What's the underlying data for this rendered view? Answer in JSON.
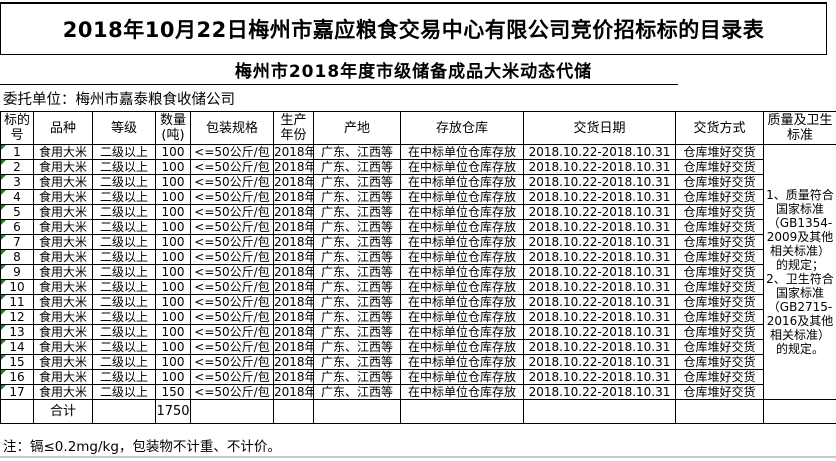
{
  "title": "2018年10月22日梅州市嘉应粮食交易中心有限公司竞价招标标的目录表",
  "subtitle": "梅州市2018年度市级储备成品大米动态代储",
  "client_line": "委托单位：梅州市嘉泰粮食收储公司",
  "note": "注：镉≤0.2mg/kg，包装物不计重、不计价。",
  "colors": {
    "corner_marker_green": "#1e7e1e",
    "bottom_edge_gray": "#c9c9c9"
  },
  "table": {
    "headers": [
      "标的\n号",
      "品种",
      "等级",
      "数量\n(吨)",
      "包装规格",
      "生产\n年份",
      "产地",
      "存放仓库",
      "交货日期",
      "交货方式",
      "质量及卫生\n标准"
    ],
    "quality_standard": [
      "1、质量符合国家标准（GB1354-2009及其他相关标准）的规定；",
      "2、卫生符合国家标准（GB2715-2016及其他相关标准）的规定。"
    ],
    "total": {
      "label": "合计",
      "quantity": "1750"
    },
    "rows": [
      {
        "no": "1",
        "variety": "食用大米",
        "grade": "二级以上",
        "qty": "100",
        "pack": "<=50公斤/包",
        "year": "2018年",
        "origin": "广东、江西等",
        "warehouse": "在中标单位仓库存放",
        "dates": "2018.10.22-2018.10.31",
        "delivery": "仓库堆好交货"
      },
      {
        "no": "2",
        "variety": "食用大米",
        "grade": "二级以上",
        "qty": "100",
        "pack": "<=50公斤/包",
        "year": "2018年",
        "origin": "广东、江西等",
        "warehouse": "在中标单位仓库存放",
        "dates": "2018.10.22-2018.10.31",
        "delivery": "仓库堆好交货"
      },
      {
        "no": "3",
        "variety": "食用大米",
        "grade": "二级以上",
        "qty": "100",
        "pack": "<=50公斤/包",
        "year": "2018年",
        "origin": "广东、江西等",
        "warehouse": "在中标单位仓库存放",
        "dates": "2018.10.22-2018.10.31",
        "delivery": "仓库堆好交货"
      },
      {
        "no": "4",
        "variety": "食用大米",
        "grade": "二级以上",
        "qty": "100",
        "pack": "<=50公斤/包",
        "year": "2018年",
        "origin": "广东、江西等",
        "warehouse": "在中标单位仓库存放",
        "dates": "2018.10.22-2018.10.31",
        "delivery": "仓库堆好交货"
      },
      {
        "no": "5",
        "variety": "食用大米",
        "grade": "二级以上",
        "qty": "100",
        "pack": "<=50公斤/包",
        "year": "2018年",
        "origin": "广东、江西等",
        "warehouse": "在中标单位仓库存放",
        "dates": "2018.10.22-2018.10.31",
        "delivery": "仓库堆好交货"
      },
      {
        "no": "6",
        "variety": "食用大米",
        "grade": "二级以上",
        "qty": "100",
        "pack": "<=50公斤/包",
        "year": "2018年",
        "origin": "广东、江西等",
        "warehouse": "在中标单位仓库存放",
        "dates": "2018.10.22-2018.10.31",
        "delivery": "仓库堆好交货"
      },
      {
        "no": "7",
        "variety": "食用大米",
        "grade": "二级以上",
        "qty": "100",
        "pack": "<=50公斤/包",
        "year": "2018年",
        "origin": "广东、江西等",
        "warehouse": "在中标单位仓库存放",
        "dates": "2018.10.22-2018.10.31",
        "delivery": "仓库堆好交货"
      },
      {
        "no": "8",
        "variety": "食用大米",
        "grade": "二级以上",
        "qty": "100",
        "pack": "<=50公斤/包",
        "year": "2018年",
        "origin": "广东、江西等",
        "warehouse": "在中标单位仓库存放",
        "dates": "2018.10.22-2018.10.31",
        "delivery": "仓库堆好交货"
      },
      {
        "no": "9",
        "variety": "食用大米",
        "grade": "二级以上",
        "qty": "100",
        "pack": "<=50公斤/包",
        "year": "2018年",
        "origin": "广东、江西等",
        "warehouse": "在中标单位仓库存放",
        "dates": "2018.10.22-2018.10.31",
        "delivery": "仓库堆好交货"
      },
      {
        "no": "10",
        "variety": "食用大米",
        "grade": "二级以上",
        "qty": "100",
        "pack": "<=50公斤/包",
        "year": "2018年",
        "origin": "广东、江西等",
        "warehouse": "在中标单位仓库存放",
        "dates": "2018.10.22-2018.10.31",
        "delivery": "仓库堆好交货"
      },
      {
        "no": "11",
        "variety": "食用大米",
        "grade": "二级以上",
        "qty": "100",
        "pack": "<=50公斤/包",
        "year": "2018年",
        "origin": "广东、江西等",
        "warehouse": "在中标单位仓库存放",
        "dates": "2018.10.22-2018.10.31",
        "delivery": "仓库堆好交货"
      },
      {
        "no": "12",
        "variety": "食用大米",
        "grade": "二级以上",
        "qty": "100",
        "pack": "<=50公斤/包",
        "year": "2018年",
        "origin": "广东、江西等",
        "warehouse": "在中标单位仓库存放",
        "dates": "2018.10.22-2018.10.31",
        "delivery": "仓库堆好交货"
      },
      {
        "no": "13",
        "variety": "食用大米",
        "grade": "二级以上",
        "qty": "100",
        "pack": "<=50公斤/包",
        "year": "2018年",
        "origin": "广东、江西等",
        "warehouse": "在中标单位仓库存放",
        "dates": "2018.10.22-2018.10.31",
        "delivery": "仓库堆好交货"
      },
      {
        "no": "14",
        "variety": "食用大米",
        "grade": "二级以上",
        "qty": "100",
        "pack": "<=50公斤/包",
        "year": "2018年",
        "origin": "广东、江西等",
        "warehouse": "在中标单位仓库存放",
        "dates": "2018.10.22-2018.10.31",
        "delivery": "仓库堆好交货"
      },
      {
        "no": "15",
        "variety": "食用大米",
        "grade": "二级以上",
        "qty": "100",
        "pack": "<=50公斤/包",
        "year": "2018年",
        "origin": "广东、江西等",
        "warehouse": "在中标单位仓库存放",
        "dates": "2018.10.22-2018.10.31",
        "delivery": "仓库堆好交货"
      },
      {
        "no": "16",
        "variety": "食用大米",
        "grade": "二级以上",
        "qty": "100",
        "pack": "<=50公斤/包",
        "year": "2018年",
        "origin": "广东、江西等",
        "warehouse": "在中标单位仓库存放",
        "dates": "2018.10.22-2018.10.31",
        "delivery": "仓库堆好交货"
      },
      {
        "no": "17",
        "variety": "食用大米",
        "grade": "二级以上",
        "qty": "150",
        "pack": "<=50公斤/包",
        "year": "2018年",
        "origin": "广东、江西等",
        "warehouse": "在中标单位仓库存放",
        "dates": "2018.10.22-2018.10.31",
        "delivery": "仓库堆好交货"
      }
    ]
  }
}
